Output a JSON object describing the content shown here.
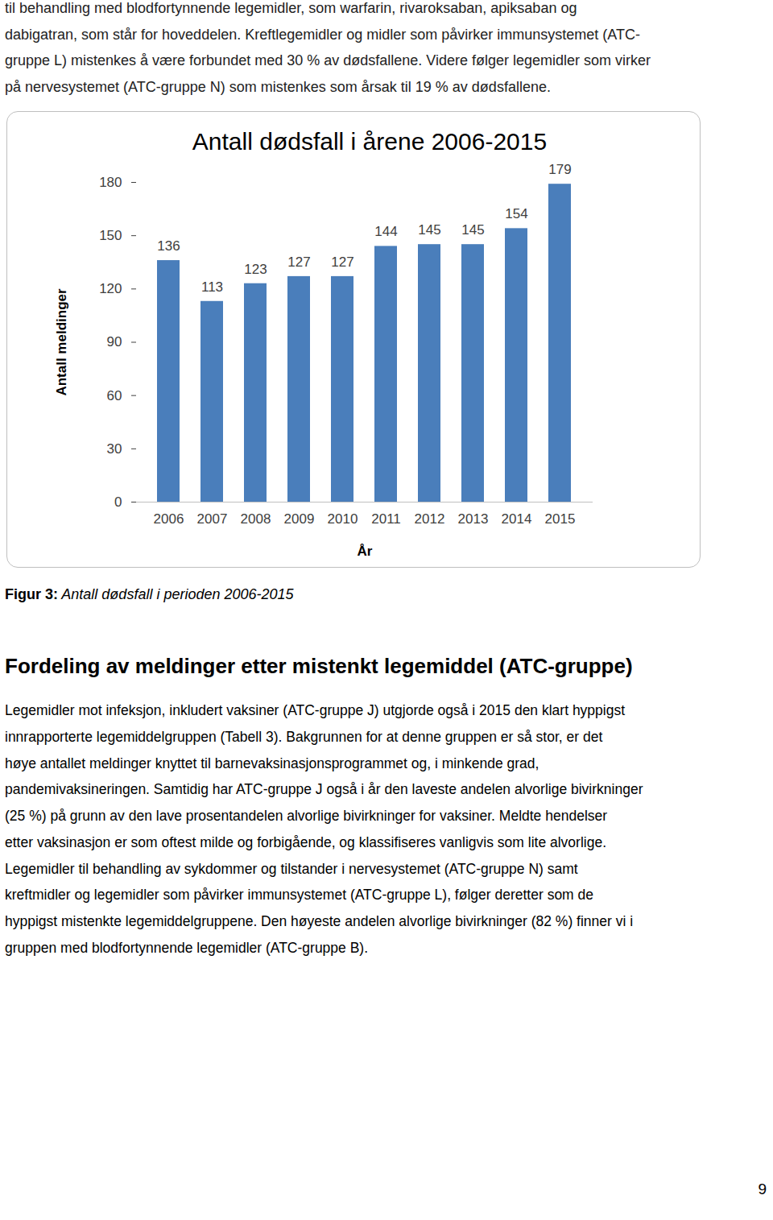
{
  "intro_lines": [
    "til behandling med blodfortynnende legemidler, som warfarin, rivaroksaban, apiksaban og",
    "dabigatran, som står for hoveddelen. Kreftlegemidler og midler som påvirker immunsystemet (ATC-",
    "gruppe L) mistenkes å være forbundet med 30 % av dødsfallene. Videre følger legemidler som virker",
    "på nervesystemet (ATC-gruppe N) som mistenkes som årsak til 19 % av dødsfallene."
  ],
  "chart_data": {
    "type": "bar",
    "title": "Antall dødsfall i årene 2006-2015",
    "x_label": "År",
    "y_label": "Antall meldinger",
    "categories": [
      "2006",
      "2007",
      "2008",
      "2009",
      "2010",
      "2011",
      "2012",
      "2013",
      "2014",
      "2015"
    ],
    "values": [
      136,
      113,
      123,
      127,
      127,
      144,
      145,
      145,
      154,
      179
    ],
    "color": "#4a7ebb",
    "ylim": [
      0,
      180
    ],
    "yticks": [
      0,
      30,
      60,
      90,
      120,
      150,
      180
    ],
    "grid": false,
    "data_labels": true
  },
  "caption": {
    "label": "Figur 3:",
    "text": "Antall dødsfall i perioden 2006-2015"
  },
  "heading": "Fordeling av meldinger etter mistenkt legemiddel (ATC-gruppe)",
  "body_lines": [
    "Legemidler mot infeksjon, inkludert vaksiner (ATC-gruppe J) utgjorde også i 2015 den klart hyppigst",
    "innrapporterte legemiddelgruppen (Tabell 3). Bakgrunnen for at denne gruppen er så stor, er det",
    "høye antallet meldinger knyttet til barnevaksinasjonsprogrammet og, i minkende grad,",
    "pandemivaksineringen. Samtidig har ATC-gruppe J også i år den laveste andelen alvorlige bivirkninger",
    "(25 %) på grunn av den lave prosentandelen alvorlige bivirkninger for vaksiner. Meldte hendelser",
    "etter vaksinasjon er som oftest milde og forbigående, og klassifiseres vanligvis som lite alvorlige.",
    "Legemidler til behandling av sykdommer og tilstander i nervesystemet (ATC-gruppe N) samt",
    "kreftmidler og legemidler som påvirker immunsystemet (ATC-gruppe L), følger deretter som de",
    "hyppigst mistenkte legemiddelgruppene. Den høyeste andelen alvorlige bivirkninger (82 %) finner vi i",
    "gruppen med blodfortynnende legemidler (ATC-gruppe B)."
  ],
  "page_number": "9"
}
